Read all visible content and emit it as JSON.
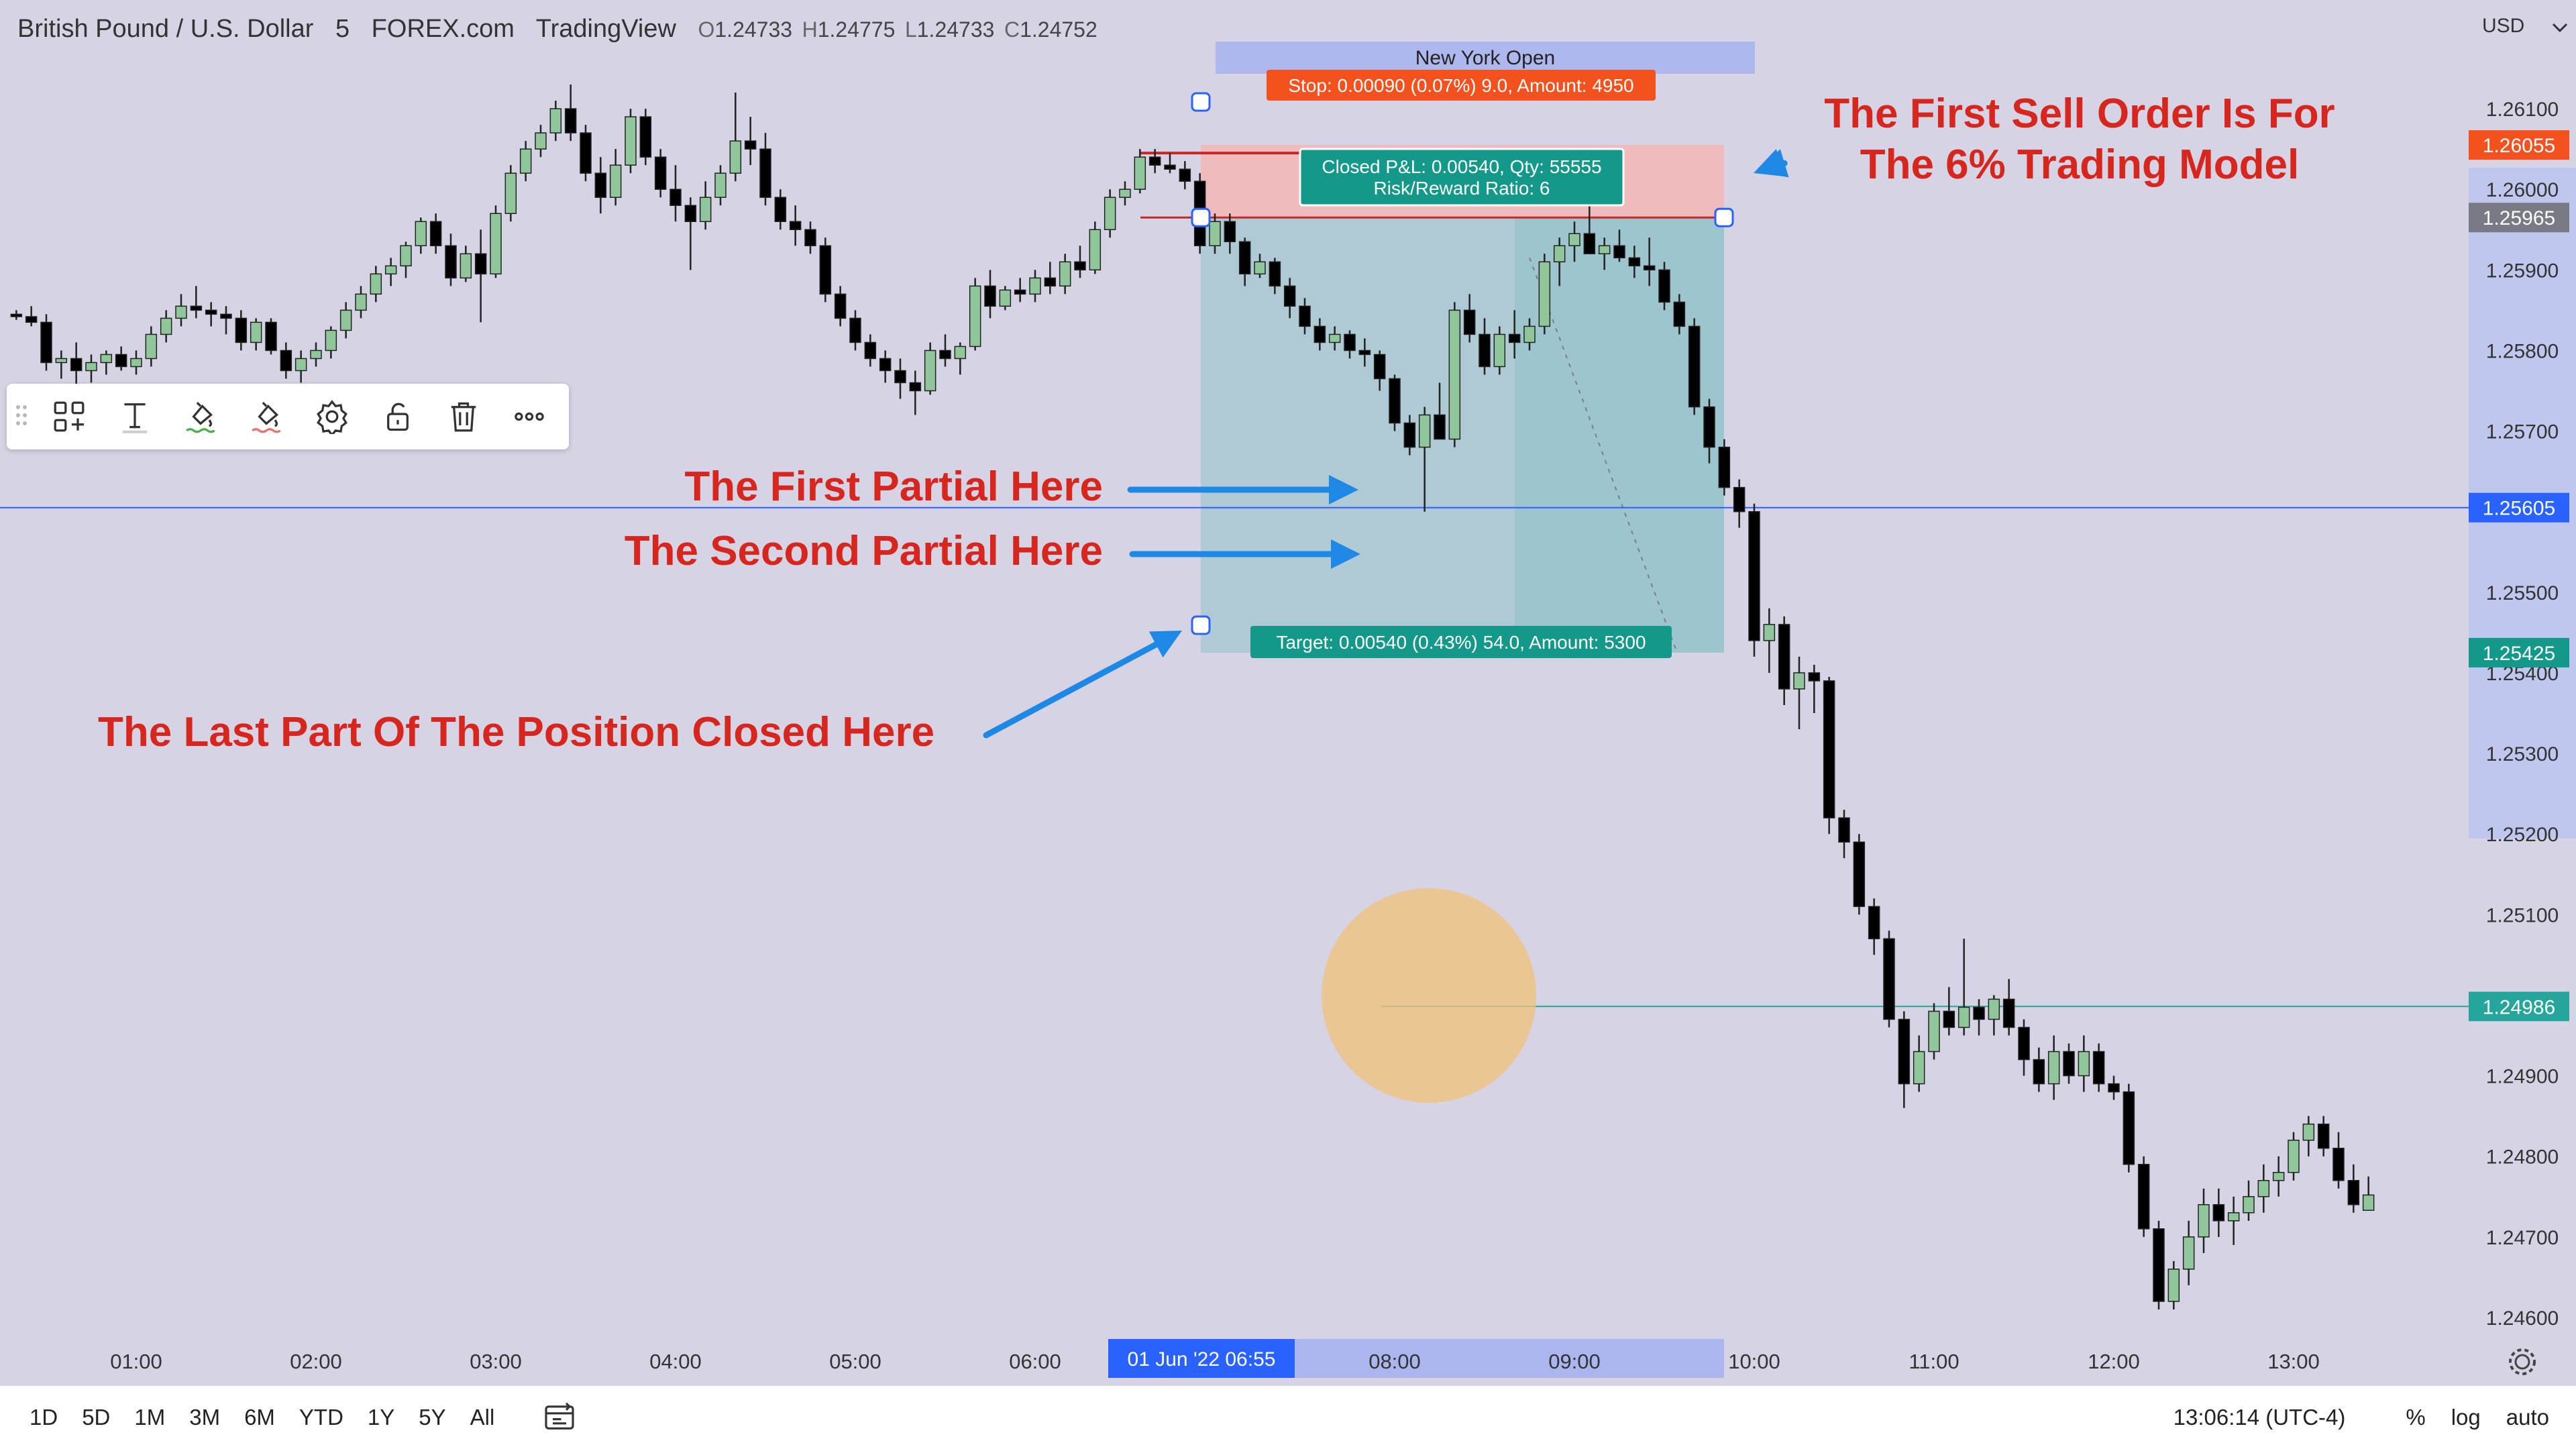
{
  "header": {
    "symbol": "British Pound / U.S. Dollar",
    "interval": "5",
    "broker": "FOREX.com",
    "platform": "TradingView",
    "open_label": "O",
    "open": "1.24733",
    "high_label": "H",
    "high": "1.24775",
    "low_label": "L",
    "low": "1.24733",
    "close_label": "C",
    "close": "1.24752"
  },
  "price_axis": {
    "currency": "USD",
    "ticks": [
      "1.26100",
      "1.26000",
      "1.25900",
      "1.25800",
      "1.25700",
      "1.25500",
      "1.25400",
      "1.25300",
      "1.25200",
      "1.25100",
      "1.24900",
      "1.24800",
      "1.24700",
      "1.24600"
    ],
    "badges": [
      {
        "label": "1.26055",
        "price": 1.26055,
        "color": "#f4511e"
      },
      {
        "label": "1.25965",
        "price": 1.25965,
        "color": "#787b86"
      },
      {
        "label": "1.25605",
        "price": 1.25605,
        "color": "#2962ff"
      },
      {
        "label": "1.25425",
        "price": 1.25425,
        "color": "#13988a"
      },
      {
        "label": "1.24986",
        "price": 1.24986,
        "color": "#26a69a"
      }
    ]
  },
  "time_axis": {
    "ticks": [
      "01:00",
      "02:00",
      "03:00",
      "04:00",
      "05:00",
      "06:00",
      "08:00",
      "09:00",
      "10:00",
      "11:00",
      "12:00",
      "13:00"
    ],
    "highlight_label": "01 Jun '22   06:55"
  },
  "session": {
    "label": "New York Open"
  },
  "position": {
    "stop_label": "Stop: 0.00090 (0.07%) 9.0, Amount: 4950",
    "pnl_label": "Closed P&L: 0.00540, Qty: 55555",
    "rr_label": "Risk/Reward Ratio: 6",
    "target_label": "Target: 0.00540 (0.43%) 54.0, Amount: 5300",
    "entry": 1.25965,
    "stop": 1.26055,
    "target": 1.25425
  },
  "annotations": {
    "sell_order_line1": "The First Sell Order Is For",
    "sell_order_line2": "The 6% Trading Model",
    "first_partial": "The First Partial Here",
    "second_partial": "The Second Partial Here",
    "last_part": "The Last Part Of The Position Closed Here"
  },
  "toolbar": {
    "icons": [
      "drag-handle-icon",
      "templates-icon",
      "text-icon",
      "line-color-icon",
      "fill-color-icon",
      "settings-icon",
      "lock-icon",
      "delete-icon",
      "more-icon"
    ]
  },
  "bottom_bar": {
    "ranges": [
      "1D",
      "5D",
      "1M",
      "3M",
      "6M",
      "YTD",
      "1Y",
      "5Y",
      "All"
    ],
    "clock": "13:06:14 (UTC-4)",
    "percent": "%",
    "log": "log",
    "auto": "auto"
  },
  "colors": {
    "up": "#8fc79a",
    "down": "#000000",
    "stop_zone": "#f4b6b6",
    "target_zone": "#8fc1c8",
    "line_blue": "#2962ff",
    "line_green": "#26a69a",
    "annotation_red": "#d7261e",
    "arrow_blue": "#1e88e5"
  },
  "chart_data": {
    "type": "candlestick",
    "x_range": [
      "00:20",
      "13:25"
    ],
    "y_range": [
      1.2457,
      1.2616
    ],
    "horizontal_lines": [
      1.25605,
      1.24986
    ],
    "candles": [
      [
        "00:20",
        1.25845,
        1.2585,
        1.25838,
        1.25842
      ],
      [
        "00:25",
        1.25842,
        1.25855,
        1.2583,
        1.25835
      ],
      [
        "00:30",
        1.25835,
        1.25845,
        1.25775,
        1.25785
      ],
      [
        "00:35",
        1.25785,
        1.258,
        1.25765,
        1.2579
      ],
      [
        "00:40",
        1.2579,
        1.2581,
        1.25755,
        1.25775
      ],
      [
        "00:45",
        1.25775,
        1.25795,
        1.2576,
        1.25785
      ],
      [
        "00:50",
        1.25785,
        1.258,
        1.2577,
        1.25795
      ],
      [
        "00:55",
        1.25795,
        1.25805,
        1.25775,
        1.2578
      ],
      [
        "01:00",
        1.2578,
        1.258,
        1.2577,
        1.2579
      ],
      [
        "01:05",
        1.2579,
        1.2583,
        1.2578,
        1.2582
      ],
      [
        "01:10",
        1.2582,
        1.2585,
        1.2581,
        1.2584
      ],
      [
        "01:15",
        1.2584,
        1.2587,
        1.2583,
        1.25855
      ],
      [
        "01:20",
        1.25855,
        1.2588,
        1.2584,
        1.2585
      ],
      [
        "01:25",
        1.2585,
        1.2586,
        1.2583,
        1.25845
      ],
      [
        "01:30",
        1.25845,
        1.25855,
        1.2582,
        1.2584
      ],
      [
        "01:35",
        1.2584,
        1.2585,
        1.258,
        1.2581
      ],
      [
        "01:40",
        1.2581,
        1.2584,
        1.258,
        1.25835
      ],
      [
        "01:45",
        1.25835,
        1.2584,
        1.25795,
        1.258
      ],
      [
        "01:50",
        1.258,
        1.2581,
        1.25765,
        1.25775
      ],
      [
        "01:55",
        1.25775,
        1.258,
        1.2576,
        1.2579
      ],
      [
        "02:00",
        1.2579,
        1.2581,
        1.2578,
        1.258
      ],
      [
        "02:05",
        1.258,
        1.2583,
        1.2579,
        1.25825
      ],
      [
        "02:10",
        1.25825,
        1.2586,
        1.25815,
        1.2585
      ],
      [
        "02:15",
        1.2585,
        1.2588,
        1.2584,
        1.2587
      ],
      [
        "02:20",
        1.2587,
        1.25905,
        1.2586,
        1.25895
      ],
      [
        "02:25",
        1.25895,
        1.25915,
        1.2588,
        1.25905
      ],
      [
        "02:30",
        1.25905,
        1.25935,
        1.2589,
        1.2593
      ],
      [
        "02:35",
        1.2593,
        1.25965,
        1.2592,
        1.2596
      ],
      [
        "02:40",
        1.2596,
        1.2597,
        1.2592,
        1.2593
      ],
      [
        "02:45",
        1.2593,
        1.25945,
        1.2588,
        1.2589
      ],
      [
        "02:50",
        1.2589,
        1.2593,
        1.25885,
        1.2592
      ],
      [
        "02:55",
        1.2592,
        1.2595,
        1.25835,
        1.25895
      ],
      [
        "03:00",
        1.25895,
        1.2598,
        1.2589,
        1.2597
      ],
      [
        "03:05",
        1.2597,
        1.2603,
        1.2596,
        1.2602
      ],
      [
        "03:10",
        1.2602,
        1.2606,
        1.2601,
        1.2605
      ],
      [
        "03:15",
        1.2605,
        1.2608,
        1.2604,
        1.2607
      ],
      [
        "03:20",
        1.2607,
        1.2611,
        1.2606,
        1.261
      ],
      [
        "03:25",
        1.261,
        1.2613,
        1.2606,
        1.2607
      ],
      [
        "03:30",
        1.2607,
        1.2608,
        1.2601,
        1.2602
      ],
      [
        "03:35",
        1.2602,
        1.2604,
        1.2597,
        1.2599
      ],
      [
        "03:40",
        1.2599,
        1.2605,
        1.2598,
        1.2603
      ],
      [
        "03:45",
        1.2603,
        1.261,
        1.2602,
        1.2609
      ],
      [
        "03:50",
        1.2609,
        1.261,
        1.2603,
        1.2604
      ],
      [
        "03:55",
        1.2604,
        1.2605,
        1.2599,
        1.26
      ],
      [
        "04:00",
        1.26,
        1.2603,
        1.2596,
        1.2598
      ],
      [
        "04:05",
        1.2598,
        1.2599,
        1.259,
        1.2596
      ],
      [
        "04:10",
        1.2596,
        1.2601,
        1.2595,
        1.2599
      ],
      [
        "04:15",
        1.2599,
        1.2603,
        1.2598,
        1.2602
      ],
      [
        "04:20",
        1.2602,
        1.2612,
        1.2601,
        1.2606
      ],
      [
        "04:25",
        1.2606,
        1.2609,
        1.2603,
        1.2605
      ],
      [
        "04:30",
        1.2605,
        1.2607,
        1.2598,
        1.2599
      ],
      [
        "04:35",
        1.2599,
        1.26,
        1.2595,
        1.2596
      ],
      [
        "04:40",
        1.2596,
        1.2598,
        1.2593,
        1.2595
      ],
      [
        "04:45",
        1.2595,
        1.2596,
        1.2592,
        1.2593
      ],
      [
        "04:50",
        1.2593,
        1.2594,
        1.2586,
        1.2587
      ],
      [
        "04:55",
        1.2587,
        1.2588,
        1.2583,
        1.2584
      ],
      [
        "05:00",
        1.2584,
        1.2585,
        1.258,
        1.2581
      ],
      [
        "05:05",
        1.2581,
        1.2582,
        1.2578,
        1.2579
      ],
      [
        "05:10",
        1.2579,
        1.258,
        1.2576,
        1.25775
      ],
      [
        "05:15",
        1.25775,
        1.2579,
        1.2574,
        1.2576
      ],
      [
        "05:20",
        1.2576,
        1.25775,
        1.2572,
        1.2575
      ],
      [
        "05:25",
        1.2575,
        1.2581,
        1.25745,
        1.258
      ],
      [
        "05:30",
        1.258,
        1.2582,
        1.2578,
        1.2579
      ],
      [
        "05:35",
        1.2579,
        1.2581,
        1.2577,
        1.25805
      ],
      [
        "05:40",
        1.25805,
        1.2589,
        1.258,
        1.2588
      ],
      [
        "05:45",
        1.2588,
        1.259,
        1.2584,
        1.25855
      ],
      [
        "05:50",
        1.25855,
        1.2588,
        1.2585,
        1.25875
      ],
      [
        "05:55",
        1.25875,
        1.2589,
        1.2586,
        1.2587
      ],
      [
        "06:00",
        1.2587,
        1.259,
        1.2586,
        1.2589
      ],
      [
        "06:05",
        1.2589,
        1.2591,
        1.2587,
        1.2588
      ],
      [
        "06:10",
        1.2588,
        1.2592,
        1.2587,
        1.2591
      ],
      [
        "06:15",
        1.2591,
        1.2593,
        1.2589,
        1.259
      ],
      [
        "06:20",
        1.259,
        1.2596,
        1.25895,
        1.2595
      ],
      [
        "06:25",
        1.2595,
        1.26,
        1.2594,
        1.2599
      ],
      [
        "06:30",
        1.2599,
        1.2601,
        1.2598,
        1.26
      ],
      [
        "06:35",
        1.26,
        1.2605,
        1.25995,
        1.2604
      ],
      [
        "06:40",
        1.2604,
        1.2605,
        1.2602,
        1.2603
      ],
      [
        "06:45",
        1.2603,
        1.26045,
        1.2602,
        1.26025
      ],
      [
        "06:50",
        1.26025,
        1.26035,
        1.26,
        1.2601
      ],
      [
        "06:55",
        1.2601,
        1.2602,
        1.2592,
        1.2593
      ],
      [
        "07:00",
        1.2593,
        1.2597,
        1.2592,
        1.2596
      ],
      [
        "07:05",
        1.2596,
        1.2597,
        1.2592,
        1.25935
      ],
      [
        "07:10",
        1.25935,
        1.2594,
        1.2588,
        1.25895
      ],
      [
        "07:15",
        1.25895,
        1.2592,
        1.2589,
        1.2591
      ],
      [
        "07:20",
        1.2591,
        1.25915,
        1.2587,
        1.2588
      ],
      [
        "07:25",
        1.2588,
        1.2589,
        1.2584,
        1.25855
      ],
      [
        "07:30",
        1.25855,
        1.25865,
        1.2582,
        1.2583
      ],
      [
        "07:35",
        1.2583,
        1.2584,
        1.258,
        1.2581
      ],
      [
        "07:40",
        1.2581,
        1.2583,
        1.258,
        1.2582
      ],
      [
        "07:45",
        1.2582,
        1.25825,
        1.2579,
        1.258
      ],
      [
        "07:50",
        1.258,
        1.25815,
        1.2578,
        1.25795
      ],
      [
        "07:55",
        1.25795,
        1.258,
        1.2575,
        1.25765
      ],
      [
        "08:00",
        1.25765,
        1.2577,
        1.257,
        1.2571
      ],
      [
        "08:05",
        1.2571,
        1.2572,
        1.2567,
        1.2568
      ],
      [
        "08:10",
        1.2568,
        1.2573,
        1.256,
        1.2572
      ],
      [
        "08:15",
        1.2572,
        1.2576,
        1.257,
        1.2569
      ],
      [
        "08:20",
        1.2569,
        1.2586,
        1.2568,
        1.2585
      ],
      [
        "08:25",
        1.2585,
        1.2587,
        1.2581,
        1.2582
      ],
      [
        "08:30",
        1.2582,
        1.2584,
        1.2577,
        1.2578
      ],
      [
        "08:35",
        1.2578,
        1.2583,
        1.2577,
        1.2582
      ],
      [
        "08:40",
        1.2582,
        1.2585,
        1.2579,
        1.2581
      ],
      [
        "08:45",
        1.2581,
        1.2584,
        1.258,
        1.2583
      ],
      [
        "08:50",
        1.2583,
        1.2592,
        1.2582,
        1.2591
      ],
      [
        "08:55",
        1.2591,
        1.2594,
        1.2588,
        1.2593
      ],
      [
        "09:00",
        1.2593,
        1.2596,
        1.2591,
        1.25945
      ],
      [
        "09:05",
        1.25945,
        1.2598,
        1.2593,
        1.2592
      ],
      [
        "09:10",
        1.2592,
        1.2594,
        1.259,
        1.2593
      ],
      [
        "09:15",
        1.2593,
        1.2595,
        1.2591,
        1.25915
      ],
      [
        "09:20",
        1.25915,
        1.2593,
        1.2589,
        1.25905
      ],
      [
        "09:25",
        1.25905,
        1.2594,
        1.2588,
        1.259
      ],
      [
        "09:30",
        1.259,
        1.2591,
        1.2585,
        1.2586
      ],
      [
        "09:35",
        1.2586,
        1.2587,
        1.2582,
        1.2583
      ],
      [
        "09:40",
        1.2583,
        1.2584,
        1.2572,
        1.2573
      ],
      [
        "09:45",
        1.2573,
        1.2574,
        1.2566,
        1.2568
      ],
      [
        "09:50",
        1.2568,
        1.2569,
        1.2562,
        1.2563
      ],
      [
        "09:55",
        1.2563,
        1.2564,
        1.2558,
        1.256
      ],
      [
        "10:00",
        1.256,
        1.2561,
        1.2542,
        1.2544
      ],
      [
        "10:05",
        1.2544,
        1.2548,
        1.254,
        1.2546
      ],
      [
        "10:10",
        1.2546,
        1.2547,
        1.2536,
        1.2538
      ],
      [
        "10:15",
        1.2538,
        1.2542,
        1.2533,
        1.254
      ],
      [
        "10:20",
        1.254,
        1.2541,
        1.2535,
        1.2539
      ],
      [
        "10:25",
        1.2539,
        1.25395,
        1.252,
        1.2522
      ],
      [
        "10:30",
        1.2522,
        1.2523,
        1.2517,
        1.2519
      ],
      [
        "10:35",
        1.2519,
        1.252,
        1.251,
        1.2511
      ],
      [
        "10:40",
        1.2511,
        1.2512,
        1.2505,
        1.2507
      ],
      [
        "10:45",
        1.2507,
        1.2508,
        1.2496,
        1.2497
      ],
      [
        "10:50",
        1.2497,
        1.2498,
        1.2486,
        1.2489
      ],
      [
        "10:55",
        1.2489,
        1.2495,
        1.2488,
        1.2493
      ],
      [
        "11:00",
        1.2493,
        1.2499,
        1.2492,
        1.2498
      ],
      [
        "11:05",
        1.2498,
        1.2501,
        1.2495,
        1.2496
      ],
      [
        "11:10",
        1.2496,
        1.2507,
        1.2495,
        1.24985
      ],
      [
        "11:15",
        1.24985,
        1.24995,
        1.2495,
        1.2497
      ],
      [
        "11:20",
        1.2497,
        1.25,
        1.2495,
        1.24995
      ],
      [
        "11:25",
        1.24995,
        1.2502,
        1.2495,
        1.2496
      ],
      [
        "11:30",
        1.2496,
        1.2497,
        1.249,
        1.2492
      ],
      [
        "11:35",
        1.2492,
        1.24935,
        1.2488,
        1.2489
      ],
      [
        "11:40",
        1.2489,
        1.2495,
        1.2487,
        1.2493
      ],
      [
        "11:45",
        1.2493,
        1.2494,
        1.2489,
        1.249
      ],
      [
        "11:50",
        1.249,
        1.2495,
        1.2488,
        1.2493
      ],
      [
        "11:55",
        1.2493,
        1.2494,
        1.2488,
        1.2489
      ],
      [
        "12:00",
        1.2489,
        1.249,
        1.2487,
        1.2488
      ],
      [
        "12:05",
        1.2488,
        1.2489,
        1.2478,
        1.2479
      ],
      [
        "12:10",
        1.2479,
        1.248,
        1.247,
        1.2471
      ],
      [
        "12:15",
        1.2471,
        1.2472,
        1.2461,
        1.2462
      ],
      [
        "12:20",
        1.2462,
        1.2467,
        1.2461,
        1.2466
      ],
      [
        "12:25",
        1.2466,
        1.2472,
        1.2464,
        1.247
      ],
      [
        "12:30",
        1.247,
        1.2476,
        1.2468,
        1.2474
      ],
      [
        "12:35",
        1.2474,
        1.2476,
        1.247,
        1.2472
      ],
      [
        "12:40",
        1.2472,
        1.2475,
        1.2469,
        1.2473
      ],
      [
        "12:45",
        1.2473,
        1.2477,
        1.2472,
        1.2475
      ],
      [
        "12:50",
        1.2475,
        1.2479,
        1.2473,
        1.2477
      ],
      [
        "12:55",
        1.2477,
        1.248,
        1.2475,
        1.2478
      ],
      [
        "13:00",
        1.2478,
        1.2483,
        1.2477,
        1.2482
      ],
      [
        "13:05",
        1.2482,
        1.2485,
        1.248,
        1.2484
      ],
      [
        "13:10",
        1.2484,
        1.2485,
        1.248,
        1.2481
      ],
      [
        "13:15",
        1.2481,
        1.2483,
        1.2476,
        1.2477
      ],
      [
        "13:20",
        1.2477,
        1.2479,
        1.2473,
        1.2474
      ],
      [
        "13:25",
        1.24733,
        1.24775,
        1.24733,
        1.24752
      ]
    ]
  }
}
